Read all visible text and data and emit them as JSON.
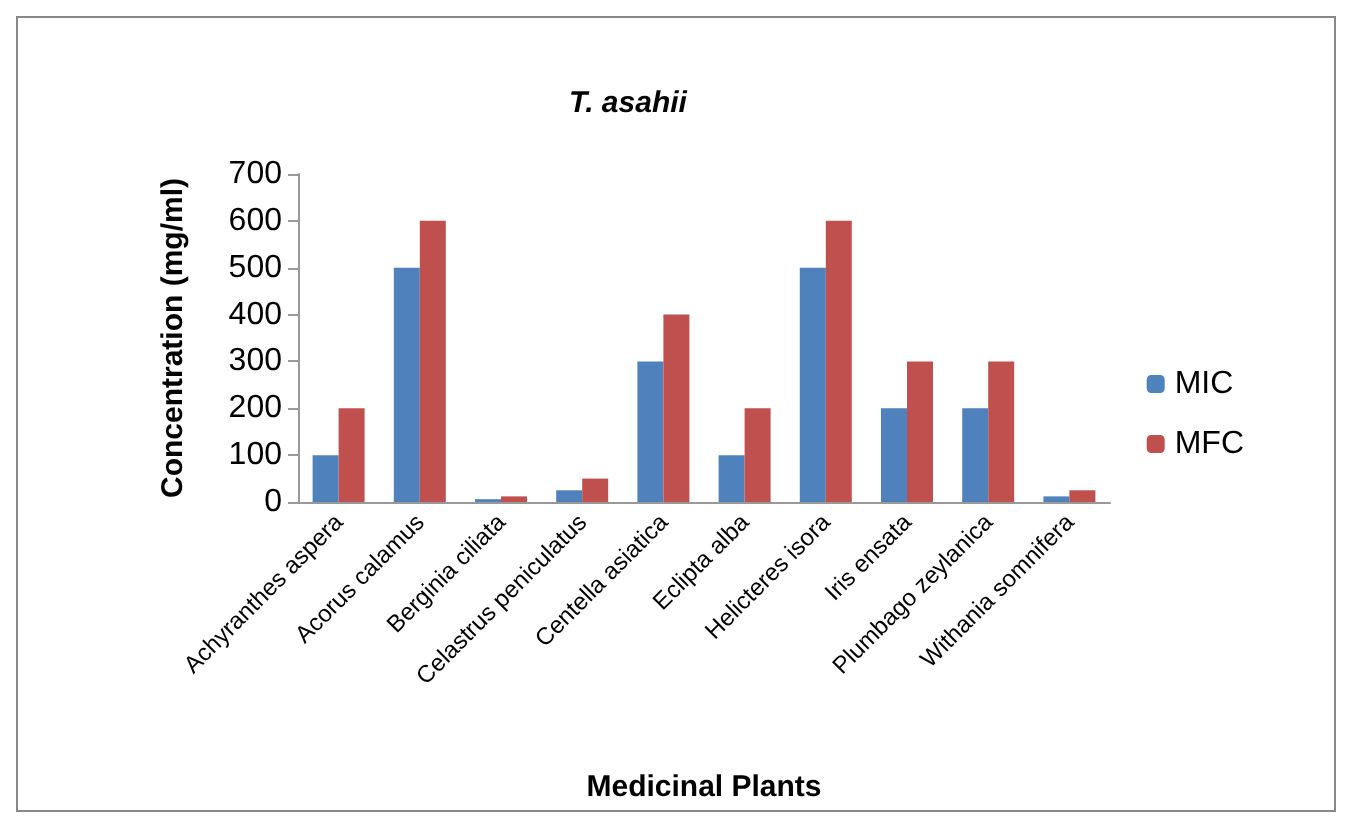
{
  "chart_data": {
    "type": "bar",
    "title": "T. asahii",
    "xlabel": "Medicinal Plants",
    "ylabel": "Concentration (mg/ml)",
    "categories": [
      "Achyranthes aspera",
      "Acorus calamus",
      "Berginia ciliata",
      "Celastrus peniculatus",
      "Centella asiatica",
      "Eclipta alba",
      "Helicteres isora",
      "Iris ensata",
      "Plumbago zeylanica",
      "Withania somnifera"
    ],
    "series": [
      {
        "name": "MIC",
        "color": "#4f81bd",
        "values": [
          100,
          500,
          6,
          25,
          300,
          100,
          500,
          200,
          200,
          12
        ]
      },
      {
        "name": "MFC",
        "color": "#c0504d",
        "values": [
          200,
          600,
          12,
          50,
          400,
          200,
          600,
          300,
          300,
          25
        ]
      }
    ],
    "ylim": [
      0,
      700
    ],
    "yticks": [
      0,
      100,
      200,
      300,
      400,
      500,
      600,
      700
    ],
    "grid": false,
    "legend": "right"
  }
}
